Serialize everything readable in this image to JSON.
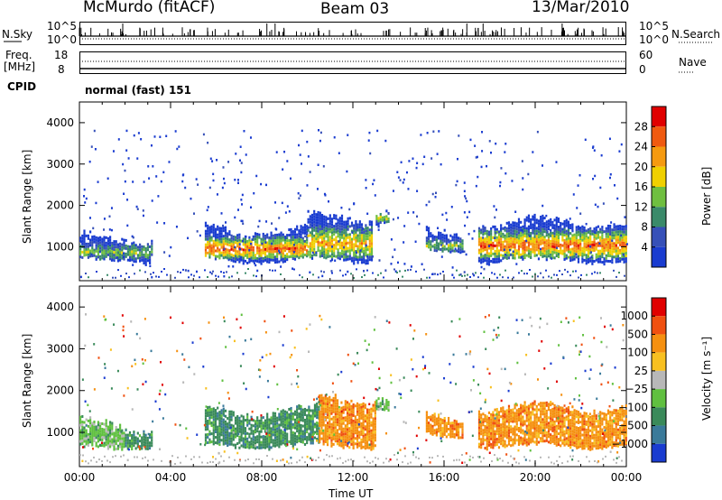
{
  "header": {
    "site": "McMurdo (fitACF)",
    "beam": "Beam 03",
    "date": "13/Mar/2010"
  },
  "noise_panel": {
    "left_label": "N.Sky",
    "right_label": "N.Search",
    "left_ticks": [
      "10^5",
      "10^0"
    ],
    "right_ticks": [
      "10^5",
      "10^0"
    ]
  },
  "freq_panel": {
    "left_label_1": "Freq.",
    "left_label_2": "[MHz]",
    "right_label": "Nave",
    "left_ticks": [
      "18",
      "8"
    ],
    "right_ticks": [
      "60",
      "0"
    ]
  },
  "cpid": {
    "label": "CPID",
    "value": "normal (fast) 151"
  },
  "chart_data": [
    {
      "type": "heatmap",
      "name": "power",
      "ylabel": "Slant Range [km]",
      "ylim": [
        180,
        4500
      ],
      "yticks": [
        "4000",
        "3000",
        "2000",
        "1000"
      ],
      "colorbar_label": "Power [dB]",
      "colorbar_ticks": [
        "28",
        "24",
        "20",
        "16",
        "12",
        "8",
        "4"
      ],
      "colors": [
        "#1a3cd0",
        "#3650b8",
        "#3a8a6a",
        "#6fbf40",
        "#f0d000",
        "#f59a10",
        "#f05a10",
        "#e00000"
      ],
      "echo_bands": [
        {
          "t0": 0.0,
          "t1": 3.2,
          "r0": 700,
          "r1": 1200,
          "level": 3
        },
        {
          "t0": 5.5,
          "t1": 10.0,
          "r0": 700,
          "r1": 1400,
          "level": 6
        },
        {
          "t0": 10.0,
          "t1": 12.8,
          "r0": 700,
          "r1": 1700,
          "level": 5
        },
        {
          "t0": 13.0,
          "t1": 13.6,
          "r0": 1600,
          "r1": 1900,
          "level": 4
        },
        {
          "t0": 15.2,
          "t1": 16.8,
          "r0": 900,
          "r1": 1300,
          "level": 3
        },
        {
          "t0": 17.5,
          "t1": 24.0,
          "r0": 700,
          "r1": 1600,
          "level": 6
        }
      ]
    },
    {
      "type": "heatmap",
      "name": "velocity",
      "ylabel": "Slant Range [km]",
      "ylim": [
        180,
        4500
      ],
      "yticks": [
        "4000",
        "3000",
        "2000",
        "1000"
      ],
      "colorbar_label": "Velocity [m s⁻¹]",
      "colorbar_ticks": [
        "1000",
        "500",
        "100",
        "25",
        "−25",
        "−100",
        "−500",
        "−1000"
      ],
      "colors": [
        "#1a3cd0",
        "#3a7a9a",
        "#3a8a5a",
        "#60c040",
        "#b8b8b8",
        "#f8c020",
        "#f59010",
        "#f05010",
        "#e00000"
      ],
      "echo_bands": [
        {
          "t0": 0.0,
          "t1": 2.0,
          "r0": 650,
          "r1": 1200,
          "level": 3
        },
        {
          "t0": 2.0,
          "t1": 3.2,
          "r0": 700,
          "r1": 1100,
          "level": 2
        },
        {
          "t0": 5.5,
          "t1": 10.5,
          "r0": 700,
          "r1": 1500,
          "level": 2
        },
        {
          "t0": 10.5,
          "t1": 13.0,
          "r0": 700,
          "r1": 1800,
          "level": 6
        },
        {
          "t0": 13.0,
          "t1": 13.6,
          "r0": 1600,
          "r1": 1900,
          "level": 3
        },
        {
          "t0": 15.2,
          "t1": 16.8,
          "r0": 900,
          "r1": 1300,
          "level": 6
        },
        {
          "t0": 17.5,
          "t1": 24.0,
          "r0": 700,
          "r1": 1600,
          "level": 6
        }
      ]
    }
  ],
  "xaxis": {
    "label": "Time UT",
    "ticks": [
      "00:00",
      "04:00",
      "08:00",
      "12:00",
      "16:00",
      "20:00",
      "00:00"
    ]
  }
}
